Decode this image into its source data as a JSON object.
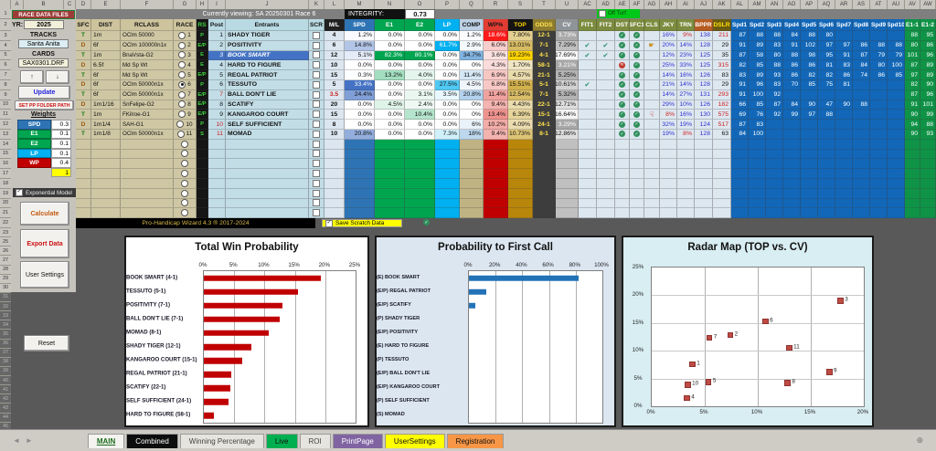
{
  "header1": {
    "viewing": "Currently viewing: SA 20250301 Race 6",
    "integrity_label": "INTEGRITY:",
    "integrity_value": "0.73",
    "off_turf_label": "Off Turf"
  },
  "sidebar": {
    "race_files": "RACE DATA FILES",
    "yr_label": "YR:",
    "yr_value": "2025",
    "tracks_label": "TRACKS",
    "tracks_value": "Santa Anita",
    "cards_label": "CARDS",
    "cards_value": "SAX0301.DRF",
    "up_icon": "↑",
    "down_icon": "↓",
    "update_label": "Update",
    "set_pp_label": "SET PP FOLDER PATH",
    "weights_label": "Weights",
    "weights": [
      {
        "label": "SPD",
        "value": "0.3",
        "color": "#2e74b5"
      },
      {
        "label": "E1",
        "value": "0.1",
        "color": "#00a550"
      },
      {
        "label": "E2",
        "value": "0.1",
        "color": "#00a550"
      },
      {
        "label": "LP",
        "value": "0.1",
        "color": "#00b0f0"
      },
      {
        "label": "WP",
        "value": "0.4",
        "color": "#c00000"
      }
    ],
    "weights_total": "1",
    "exp_model_label": "Exponential Model",
    "calculate_label": "Calculate",
    "export_label": "Export Data",
    "user_settings_label": "User Settings",
    "reset_label": "Reset"
  },
  "table": {
    "column_letters": [
      "D",
      "E",
      "F",
      "G",
      "H",
      "I",
      "J",
      "K",
      "L",
      "M",
      "N",
      "O",
      "P",
      "Q",
      "R",
      "S",
      "T",
      "U",
      "AC",
      "AD",
      "AE",
      "AF",
      "AG",
      "AH",
      "AI",
      "AJ",
      "AK",
      "AL",
      "AM",
      "AN",
      "AO",
      "AP",
      "AQ",
      "AR",
      "AS",
      "AT",
      "AU",
      "AV",
      "AW"
    ],
    "sidebar_letters": [
      "A",
      "B",
      "C"
    ],
    "headers": [
      "SFC",
      "DIST",
      "RCLASS",
      "RACE",
      "RS",
      "Post",
      "Entrants",
      "SCR",
      "M/L",
      "SPD",
      "E1",
      "E2",
      "LP",
      "COMP",
      "WP%",
      "TOP",
      "ODDS",
      "CV",
      "FIT1",
      "FIT2",
      "DST",
      "SFC1",
      "CLS",
      "JKY",
      "TRN",
      "BPPR",
      "DSLR",
      "Spd1",
      "Spd2",
      "Spd3",
      "Spd4",
      "Spd5",
      "Spd6",
      "Spd7",
      "Spd8",
      "Spd9",
      "Spd10",
      "E1-1",
      "E1-2"
    ],
    "empty_rows": 8,
    "rows": [
      {
        "race": 1,
        "sfc": "T",
        "dist": "1m",
        "rclass": "OClm 50000",
        "rs": "P",
        "post": "1",
        "post_red": false,
        "name": "SHADY TIGER",
        "hl": false,
        "sel": false,
        "ml": "4",
        "ml_red": false,
        "spd": 1.2,
        "e1": 0.0,
        "e2": 0.0,
        "lp": 0.0,
        "comp": 1.2,
        "wp": 18.6,
        "top": 7.8,
        "odds": "12-1",
        "cv": 3.73,
        "fit1": false,
        "fit2": false,
        "dst": "ok",
        "sfc1": "ok",
        "cls": "",
        "jky": "16%",
        "jky_red": false,
        "trn": "9%",
        "trn_red": true,
        "bppr": "138",
        "dslr": "211",
        "dslr_red": true,
        "spds": [
          "87",
          "88",
          "88",
          "84",
          "88",
          "80",
          "",
          "",
          "",
          ""
        ],
        "e11": "88",
        "e12": "95"
      },
      {
        "race": 2,
        "sfc": "D",
        "dist": "6f",
        "rclass": "OClm 100000n1x",
        "rs": "E/P",
        "post": "2",
        "post_red": false,
        "name": "POSITIVITY",
        "hl": false,
        "sel": false,
        "ml": "6",
        "ml_red": false,
        "spd": 14.8,
        "e1": 0.0,
        "e2": 0.0,
        "lp": 61.7,
        "comp": 2.9,
        "wp": 6.0,
        "top": 13.01,
        "odds": "7-1",
        "cv": 7.29,
        "fit1": true,
        "fit2": true,
        "dst": "ok",
        "sfc1": "ok",
        "cls": "up",
        "jky": "20%",
        "jky_red": false,
        "trn": "14%",
        "trn_red": false,
        "bppr": "128",
        "dslr": "29",
        "dslr_red": false,
        "spds": [
          "91",
          "89",
          "83",
          "91",
          "102",
          "97",
          "97",
          "86",
          "88",
          "88"
        ],
        "e11": "80",
        "e12": "86"
      },
      {
        "race": 3,
        "sfc": "T",
        "dist": "1m",
        "rclass": "BnaVsta-G2",
        "rs": "E",
        "post": "3",
        "post_red": false,
        "name": "BOOK SMART",
        "hl": true,
        "sel": false,
        "ml": "12",
        "ml_red": false,
        "spd": 5.1,
        "e1": 82.3,
        "e2": 80.1,
        "lp": 0.0,
        "comp": 34.7,
        "wp": 3.6,
        "top": 19.23,
        "odds": "4-1",
        "cv": 17.69,
        "fit1": true,
        "fit2": true,
        "dst": "ok",
        "sfc1": "ok",
        "cls": "",
        "jky": "12%",
        "jky_red": false,
        "trn": "23%",
        "trn_red": false,
        "bppr": "125",
        "dslr": "35",
        "dslr_red": false,
        "spds": [
          "87",
          "58",
          "80",
          "88",
          "98",
          "95",
          "91",
          "87",
          "79",
          "79"
        ],
        "e11": "101",
        "e12": "96"
      },
      {
        "race": 4,
        "sfc": "D",
        "dist": "6.5f",
        "rclass": "Md Sp Wt",
        "rs": "E",
        "post": "4",
        "post_red": false,
        "name": "HARD TO FIGURE",
        "hl": false,
        "sel": false,
        "ml": "10",
        "ml_red": false,
        "spd": 0.0,
        "e1": 0.0,
        "e2": 0.0,
        "lp": 0.0,
        "comp": 0.0,
        "wp": 4.3,
        "top": 1.7,
        "odds": "58-1",
        "cv": 3.21,
        "fit1": false,
        "fit2": false,
        "dst": "bad",
        "sfc1": "ok",
        "cls": "",
        "jky": "25%",
        "jky_red": false,
        "trn": "33%",
        "trn_red": false,
        "bppr": "125",
        "dslr": "315",
        "dslr_red": true,
        "spds": [
          "82",
          "85",
          "88",
          "86",
          "86",
          "81",
          "83",
          "84",
          "80",
          "100"
        ],
        "e11": "87",
        "e12": "89"
      },
      {
        "race": 5,
        "sfc": "T",
        "dist": "6f",
        "rclass": "Md Sp Wt",
        "rs": "E/P",
        "post": "5",
        "post_red": false,
        "name": "REGAL PATRIOT",
        "hl": false,
        "sel": false,
        "ml": "15",
        "ml_red": false,
        "spd": 0.3,
        "e1": 13.2,
        "e2": 4.0,
        "lp": 0.0,
        "comp": 11.4,
        "wp": 6.9,
        "top": 4.57,
        "odds": "21-1",
        "cv": 5.25,
        "fit1": false,
        "fit2": false,
        "dst": "ok",
        "sfc1": "ok",
        "cls": "",
        "jky": "14%",
        "jky_red": false,
        "trn": "16%",
        "trn_red": false,
        "bppr": "126",
        "dslr": "83",
        "dslr_red": false,
        "spds": [
          "83",
          "89",
          "93",
          "86",
          "82",
          "82",
          "86",
          "74",
          "86",
          "85"
        ],
        "e11": "97",
        "e12": "89"
      },
      {
        "race": 6,
        "sfc": "D",
        "dist": "6f",
        "rclass": "OClm 50000n1x",
        "rs": "P",
        "post": "6",
        "post_red": false,
        "name": "TESSUTO",
        "hl": false,
        "sel": true,
        "ml": "5",
        "ml_red": false,
        "spd": 33.4,
        "e1": 0.0,
        "e2": 0.0,
        "lp": 27.5,
        "comp": 4.5,
        "wp": 6.8,
        "top": 15.51,
        "odds": "5-1",
        "cv": 10.61,
        "fit1": true,
        "fit2": false,
        "dst": "ok",
        "sfc1": "ok",
        "cls": "",
        "jky": "21%",
        "jky_red": false,
        "trn": "14%",
        "trn_red": false,
        "bppr": "128",
        "dslr": "29",
        "dslr_red": false,
        "spds": [
          "91",
          "96",
          "83",
          "70",
          "85",
          "75",
          "81",
          "",
          "",
          ""
        ],
        "e11": "82",
        "e12": "90"
      },
      {
        "race": 7,
        "sfc": "T",
        "dist": "6f",
        "rclass": "OClm 50000n1x",
        "rs": "E/P",
        "post": "7",
        "post_red": true,
        "name": "BALL DON'T LIE",
        "hl": false,
        "sel": false,
        "ml": "3.5",
        "ml_red": true,
        "spd": 24.4,
        "e1": 0.0,
        "e2": 3.1,
        "lp": 3.5,
        "comp": 20.8,
        "wp": 11.4,
        "top": 12.54,
        "odds": "7-1",
        "cv": 5.32,
        "fit1": false,
        "fit2": false,
        "dst": "ok",
        "sfc1": "ok",
        "cls": "",
        "jky": "14%",
        "jky_red": false,
        "trn": "27%",
        "trn_red": false,
        "bppr": "131",
        "dslr": "293",
        "dslr_red": true,
        "spds": [
          "91",
          "100",
          "92",
          "",
          "",
          "",
          "",
          "",
          "",
          ""
        ],
        "e11": "87",
        "e12": "96"
      },
      {
        "race": 8,
        "sfc": "D",
        "dist": "1m1/16",
        "rclass": "SnFelipe-G2",
        "rs": "E/P",
        "post": "8",
        "post_red": false,
        "name": "SCATIFY",
        "hl": false,
        "sel": false,
        "ml": "20",
        "ml_red": false,
        "spd": 0.0,
        "e1": 4.5,
        "e2": 2.4,
        "lp": 0.0,
        "comp": 0.0,
        "wp": 9.4,
        "top": 4.43,
        "odds": "22-1",
        "cv": 12.71,
        "fit1": false,
        "fit2": false,
        "dst": "ok",
        "sfc1": "ok",
        "cls": "",
        "jky": "29%",
        "jky_red": false,
        "trn": "10%",
        "trn_red": false,
        "bppr": "126",
        "dslr": "182",
        "dslr_red": true,
        "spds": [
          "66",
          "85",
          "87",
          "84",
          "90",
          "47",
          "90",
          "88",
          "",
          ""
        ],
        "e11": "91",
        "e12": "101"
      },
      {
        "race": 9,
        "sfc": "T",
        "dist": "1m",
        "rclass": "FKilroe-G1",
        "rs": "E/P",
        "post": "9",
        "post_red": false,
        "name": "KANGAROO COURT",
        "hl": false,
        "sel": false,
        "ml": "15",
        "ml_red": false,
        "spd": 0.0,
        "e1": 0.0,
        "e2": 10.4,
        "lp": 0.0,
        "comp": 0.0,
        "wp": 13.4,
        "top": 6.39,
        "odds": "15-1",
        "cv": 16.64,
        "fit1": false,
        "fit2": false,
        "dst": "ok",
        "sfc1": "ok",
        "cls": "down",
        "jky": "8%",
        "jky_red": true,
        "trn": "16%",
        "trn_red": false,
        "bppr": "130",
        "dslr": "575",
        "dslr_red": true,
        "spds": [
          "69",
          "76",
          "92",
          "99",
          "97",
          "88",
          "",
          "",
          "",
          ""
        ],
        "e11": "90",
        "e12": "99"
      },
      {
        "race": 10,
        "sfc": "D",
        "dist": "1m1/4",
        "rclass": "SAH-G1",
        "rs": "P",
        "post": "10",
        "post_red": true,
        "name": "SELF SUFFICIENT",
        "hl": false,
        "sel": false,
        "ml": "8",
        "ml_red": false,
        "spd": 0.0,
        "e1": 0.0,
        "e2": 0.0,
        "lp": 0.0,
        "comp": 6.0,
        "wp": 10.2,
        "top": 4.09,
        "odds": "24-1",
        "cv": 3.29,
        "fit1": false,
        "fit2": false,
        "dst": "ok",
        "sfc1": "ok",
        "cls": "",
        "jky": "32%",
        "jky_red": false,
        "trn": "19%",
        "trn_red": false,
        "bppr": "124",
        "dslr": "517",
        "dslr_red": true,
        "spds": [
          "87",
          "83",
          "",
          "",
          "",
          "",
          "",
          "",
          "",
          ""
        ],
        "e11": "94",
        "e12": "88"
      },
      {
        "race": 11,
        "sfc": "T",
        "dist": "1m1/8",
        "rclass": "OClm 50000n1x",
        "rs": "S",
        "post": "11",
        "post_red": true,
        "name": "MOMAD",
        "hl": false,
        "sel": false,
        "ml": "10",
        "ml_red": false,
        "spd": 20.8,
        "e1": 0.0,
        "e2": 0.0,
        "lp": 7.3,
        "comp": 18.0,
        "wp": 9.4,
        "top": 10.73,
        "odds": "8-1",
        "cv": 12.86,
        "fit1": false,
        "fit2": false,
        "dst": "ok",
        "sfc1": "ok",
        "cls": "",
        "jky": "19%",
        "jky_red": false,
        "trn": "8%",
        "trn_red": true,
        "bppr": "128",
        "dslr": "63",
        "dslr_red": false,
        "spds": [
          "84",
          "100",
          "",
          "",
          "",
          "",
          "",
          "",
          "",
          ""
        ],
        "e11": "90",
        "e12": "93"
      }
    ]
  },
  "footer": {
    "brand": "Pro-Handicap Wizard 4.3 ® 2017-2024",
    "save_scratch": "Save Scratch Data"
  },
  "chart_data": [
    {
      "type": "bar",
      "orientation": "horizontal",
      "title": "Total Win Probability",
      "categories": [
        "BOOK SMART (4-1)",
        "TESSUTO (5-1)",
        "POSITIVITY (7-1)",
        "BALL DON'T LIE (7-1)",
        "MOMAD (8-1)",
        "SHADY TIGER (12-1)",
        "KANGAROO COURT (15-1)",
        "REGAL PATRIOT (21-1)",
        "SCATIFY (22-1)",
        "SELF SUFFICIENT (24-1)",
        "HARD TO FIGURE (58-1)"
      ],
      "values": [
        19.23,
        15.51,
        13.01,
        12.54,
        10.73,
        7.8,
        6.39,
        4.57,
        4.43,
        4.09,
        1.7
      ],
      "xlim": [
        0,
        25
      ],
      "tick_step": 5,
      "tick_labels": [
        "0%",
        "5%",
        "10%",
        "15%",
        "20%",
        "25%"
      ],
      "bar_color": "#c00000",
      "bg": "#ffffff",
      "grid": true
    },
    {
      "type": "bar",
      "orientation": "horizontal",
      "title": "Probability to First Call",
      "categories": [
        "(E) BOOK SMART",
        "(E/P) REGAL PATRIOT",
        "(E/P) SCATIFY",
        "(P) SHADY TIGER",
        "(E/P) POSITIVITY",
        "(E) HARD TO FIGURE",
        "(P) TESSUTO",
        "(E/P) BALL DON'T LIE",
        "(E/P) KANGAROO COURT",
        "(P) SELF SUFFICIENT",
        "(S) MOMAD"
      ],
      "values": [
        82.3,
        13.2,
        4.5,
        0,
        0,
        0,
        0,
        0,
        0,
        0,
        0
      ],
      "xlim": [
        0,
        100
      ],
      "tick_step": 20,
      "tick_labels": [
        "0%",
        "20%",
        "40%",
        "60%",
        "80%",
        "100%"
      ],
      "bar_color": "#2272b8",
      "bg": "#dce6f1",
      "grid": true
    },
    {
      "type": "scatter",
      "title": "Radar Map (TOP vs. CV)",
      "xlabel": "CV",
      "ylabel": "TOP",
      "xlim": [
        0,
        20
      ],
      "ylim": [
        0,
        25
      ],
      "x_ticks": [
        "0%",
        "5%",
        "10%",
        "15%",
        "20%"
      ],
      "y_ticks": [
        "0%",
        "5%",
        "10%",
        "15%",
        "20%",
        "25%"
      ],
      "points": [
        {
          "label": "1",
          "x": 3.73,
          "y": 7.8
        },
        {
          "label": "2",
          "x": 7.29,
          "y": 13.01
        },
        {
          "label": "3",
          "x": 17.69,
          "y": 19.23
        },
        {
          "label": "4",
          "x": 3.21,
          "y": 1.7
        },
        {
          "label": "5",
          "x": 5.25,
          "y": 4.57
        },
        {
          "label": "6",
          "x": 10.61,
          "y": 15.51
        },
        {
          "label": "7",
          "x": 5.32,
          "y": 12.54
        },
        {
          "label": "8",
          "x": 12.71,
          "y": 4.43
        },
        {
          "label": "9",
          "x": 16.64,
          "y": 6.39
        },
        {
          "label": "10",
          "x": 3.29,
          "y": 4.09
        },
        {
          "label": "11",
          "x": 12.86,
          "y": 10.73
        }
      ],
      "marker_color": "#bf4b45",
      "bg": "#d9eef3",
      "grid": true
    }
  ],
  "tabs": {
    "nav_left_icon": "◄",
    "nav_right_icon": "►",
    "add_icon": "⊕",
    "items": [
      {
        "label": "MAIN",
        "bg": "#f4f3f0",
        "fg": "#1a6b1a",
        "active": true
      },
      {
        "label": "Combined",
        "bg": "#0d0d0d",
        "fg": "#ffffff",
        "active": false
      },
      {
        "label": "Winning Percentage",
        "bg": "#e6e4df",
        "fg": "#444444",
        "active": false
      },
      {
        "label": "Live",
        "bg": "#00b050",
        "fg": "#111111",
        "active": false
      },
      {
        "label": "ROI",
        "bg": "#e6e4df",
        "fg": "#444444",
        "active": false
      },
      {
        "label": "PrintPage",
        "bg": "#8064a2",
        "fg": "#ffffff",
        "active": false
      },
      {
        "label": "UserSettings",
        "bg": "#ffff00",
        "fg": "#111111",
        "active": false
      },
      {
        "label": "Registration",
        "bg": "#f79646",
        "fg": "#111111",
        "active": false
      }
    ]
  }
}
